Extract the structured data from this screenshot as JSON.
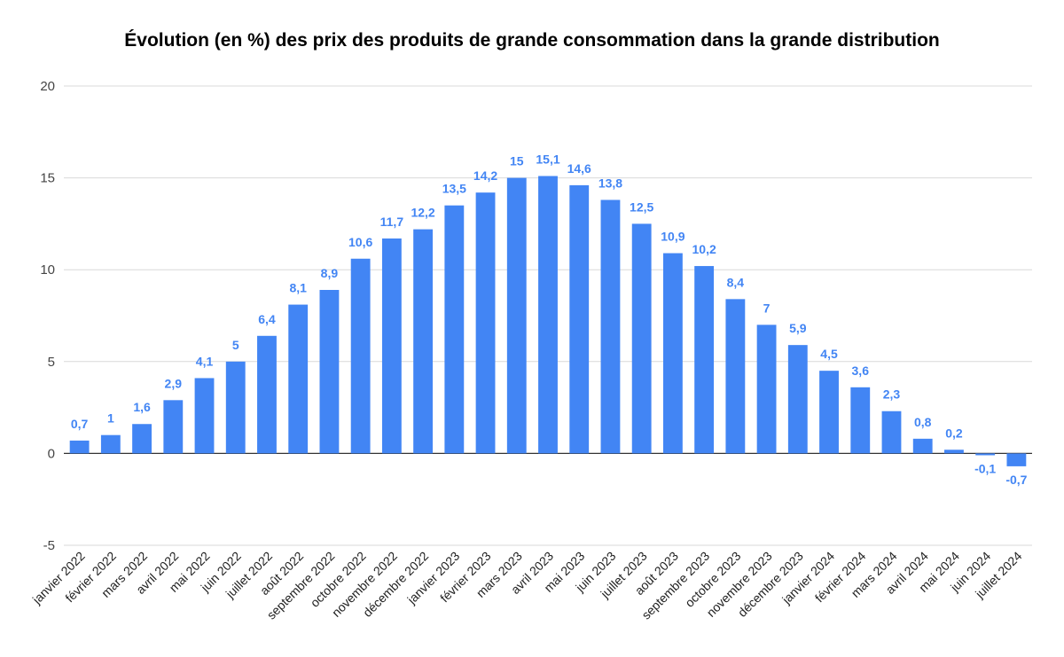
{
  "chart_data": {
    "type": "bar",
    "title": "Évolution (en %) des prix des produits de grande consommation dans la grande distribution",
    "xlabel": "",
    "ylabel": "",
    "ylim": [
      -5,
      20
    ],
    "yticks": [
      -5,
      0,
      5,
      10,
      15,
      20
    ],
    "grid": true,
    "legend": "none",
    "bar_color": "#4285f4",
    "label_color": "#4285f4",
    "categories": [
      "janvier 2022",
      "février 2022",
      "mars 2022",
      "avril 2022",
      "mai 2022",
      "juin 2022",
      "juillet 2022",
      "août 2022",
      "septembre 2022",
      "octobre 2022",
      "novembre 2022",
      "décembre 2022",
      "janvier 2023",
      "février 2023",
      "mars 2023",
      "avril 2023",
      "mai 2023",
      "juin 2023",
      "juillet 2023",
      "août 2023",
      "septembre 2023",
      "octobre 2023",
      "novembre 2023",
      "décembre 2023",
      "janvier 2024",
      "février 2024",
      "mars 2024",
      "avril 2024",
      "mai 2024",
      "juin 2024",
      "juillet 2024"
    ],
    "values": [
      0.7,
      1,
      1.6,
      2.9,
      4.1,
      5,
      6.4,
      8.1,
      8.9,
      10.6,
      11.7,
      12.2,
      13.5,
      14.2,
      15,
      15.1,
      14.6,
      13.8,
      12.5,
      10.9,
      10.2,
      8.4,
      7,
      5.9,
      4.5,
      3.6,
      2.3,
      0.8,
      0.2,
      -0.1,
      -0.7
    ],
    "data_labels": [
      "0,7",
      "1",
      "1,6",
      "2,9",
      "4,1",
      "5",
      "6,4",
      "8,1",
      "8,9",
      "10,6",
      "11,7",
      "12,2",
      "13,5",
      "14,2",
      "15",
      "15,1",
      "14,6",
      "13,8",
      "12,5",
      "10,9",
      "10,2",
      "8,4",
      "7",
      "5,9",
      "4,5",
      "3,6",
      "2,3",
      "0,8",
      "0,2",
      "-0,1",
      "-0,7"
    ]
  }
}
